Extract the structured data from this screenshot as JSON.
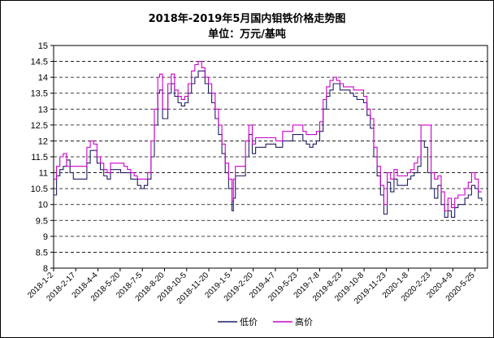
{
  "chart_data": {
    "type": "line",
    "title": "2018年-2019年5月国内钼铁价格走势图",
    "subtitle": "单位：万元/基吨",
    "ylim": [
      8,
      15
    ],
    "y_ticks": [
      "8",
      "8.5",
      "9",
      "9.5",
      "10",
      "10.5",
      "11",
      "11.5",
      "12",
      "12.5",
      "13",
      "13.5",
      "14",
      "14.5",
      "15"
    ],
    "x_tick_labels": [
      "2018-1-2",
      "2018-2-17",
      "2018-4-4",
      "2018-5-20",
      "2018-7-5",
      "2018-8-20",
      "2018-10-5",
      "2018-11-20",
      "2019-1-5",
      "2019-2-20",
      "2019-4-7",
      "2019-5-23",
      "2019-7-8",
      "2019-8-23",
      "2019-10-8",
      "2019-11-23",
      "2020-1-8",
      "2020-2-23",
      "2020-4-9",
      "2020-5-25"
    ],
    "x_range": [
      "2018-01-02",
      "2020-06-20"
    ],
    "grid": "horizontal-dashed",
    "legend_position": "bottom-right",
    "series": [
      {
        "name": "低价",
        "color": "#1f1f66",
        "points": [
          [
            "2018-01-02",
            10.3
          ],
          [
            "2018-01-08",
            10.9
          ],
          [
            "2018-01-15",
            11.1
          ],
          [
            "2018-01-22",
            11.2
          ],
          [
            "2018-01-29",
            11.4
          ],
          [
            "2018-02-05",
            11.0
          ],
          [
            "2018-02-12",
            10.8
          ],
          [
            "2018-03-05",
            10.8
          ],
          [
            "2018-03-12",
            11.3
          ],
          [
            "2018-03-19",
            11.7
          ],
          [
            "2018-03-26",
            11.7
          ],
          [
            "2018-04-02",
            11.3
          ],
          [
            "2018-04-09",
            11.1
          ],
          [
            "2018-04-16",
            10.9
          ],
          [
            "2018-04-23",
            10.8
          ],
          [
            "2018-04-30",
            11.1
          ],
          [
            "2018-05-14",
            11.1
          ],
          [
            "2018-05-21",
            11.0
          ],
          [
            "2018-06-04",
            11.0
          ],
          [
            "2018-06-11",
            10.8
          ],
          [
            "2018-06-18",
            10.8
          ],
          [
            "2018-06-25",
            10.6
          ],
          [
            "2018-07-02",
            10.5
          ],
          [
            "2018-07-09",
            10.6
          ],
          [
            "2018-07-16",
            10.8
          ],
          [
            "2018-07-23",
            11.5
          ],
          [
            "2018-07-30",
            12.5
          ],
          [
            "2018-08-06",
            13.5
          ],
          [
            "2018-08-10",
            13.6
          ],
          [
            "2018-08-16",
            12.7
          ],
          [
            "2018-08-20",
            12.7
          ],
          [
            "2018-08-27",
            13.5
          ],
          [
            "2018-09-03",
            13.8
          ],
          [
            "2018-09-10",
            13.4
          ],
          [
            "2018-09-17",
            13.2
          ],
          [
            "2018-09-24",
            13.1
          ],
          [
            "2018-10-01",
            13.2
          ],
          [
            "2018-10-08",
            13.5
          ],
          [
            "2018-10-15",
            13.8
          ],
          [
            "2018-10-22",
            14.0
          ],
          [
            "2018-10-29",
            14.2
          ],
          [
            "2018-11-05",
            14.2
          ],
          [
            "2018-11-12",
            13.8
          ],
          [
            "2018-11-19",
            13.5
          ],
          [
            "2018-11-26",
            13.2
          ],
          [
            "2018-12-03",
            12.7
          ],
          [
            "2018-12-10",
            12.2
          ],
          [
            "2018-12-17",
            11.6
          ],
          [
            "2018-12-24",
            11.0
          ],
          [
            "2018-12-31",
            10.5
          ],
          [
            "2019-01-07",
            9.8
          ],
          [
            "2019-01-10",
            10.2
          ],
          [
            "2019-01-14",
            10.9
          ],
          [
            "2019-01-28",
            10.9
          ],
          [
            "2019-02-04",
            11.5
          ],
          [
            "2019-02-11",
            12.2
          ],
          [
            "2019-02-18",
            11.6
          ],
          [
            "2019-02-25",
            11.8
          ],
          [
            "2019-03-11",
            11.8
          ],
          [
            "2019-03-18",
            11.9
          ],
          [
            "2019-04-01",
            11.9
          ],
          [
            "2019-04-08",
            11.8
          ],
          [
            "2019-04-15",
            11.8
          ],
          [
            "2019-04-22",
            12.0
          ],
          [
            "2019-05-06",
            12.0
          ],
          [
            "2019-05-13",
            12.2
          ],
          [
            "2019-05-27",
            12.2
          ],
          [
            "2019-06-03",
            12.0
          ],
          [
            "2019-06-10",
            11.9
          ],
          [
            "2019-06-17",
            11.8
          ],
          [
            "2019-06-24",
            11.9
          ],
          [
            "2019-07-01",
            12.0
          ],
          [
            "2019-07-08",
            12.3
          ],
          [
            "2019-07-15",
            13.0
          ],
          [
            "2019-07-22",
            13.4
          ],
          [
            "2019-07-29",
            13.6
          ],
          [
            "2019-08-05",
            13.8
          ],
          [
            "2019-08-12",
            13.8
          ],
          [
            "2019-08-19",
            13.6
          ],
          [
            "2019-08-26",
            13.6
          ],
          [
            "2019-09-09",
            13.5
          ],
          [
            "2019-09-16",
            13.4
          ],
          [
            "2019-09-23",
            13.3
          ],
          [
            "2019-10-07",
            13.2
          ],
          [
            "2019-10-14",
            12.8
          ],
          [
            "2019-10-21",
            12.4
          ],
          [
            "2019-10-28",
            11.5
          ],
          [
            "2019-11-04",
            10.9
          ],
          [
            "2019-11-11",
            10.3
          ],
          [
            "2019-11-18",
            9.7
          ],
          [
            "2019-11-25",
            10.7
          ],
          [
            "2019-12-02",
            10.4
          ],
          [
            "2019-12-09",
            10.8
          ],
          [
            "2019-12-16",
            10.6
          ],
          [
            "2019-12-30",
            10.6
          ],
          [
            "2020-01-06",
            10.8
          ],
          [
            "2020-01-13",
            10.9
          ],
          [
            "2020-01-20",
            11.0
          ],
          [
            "2020-01-27",
            11.2
          ],
          [
            "2020-02-03",
            12.0
          ],
          [
            "2020-02-10",
            11.8
          ],
          [
            "2020-02-17",
            11.0
          ],
          [
            "2020-02-24",
            10.5
          ],
          [
            "2020-03-02",
            10.2
          ],
          [
            "2020-03-09",
            10.6
          ],
          [
            "2020-03-16",
            10.0
          ],
          [
            "2020-03-23",
            9.6
          ],
          [
            "2020-03-30",
            9.8
          ],
          [
            "2020-04-06",
            9.6
          ],
          [
            "2020-04-13",
            9.9
          ],
          [
            "2020-04-20",
            10.0
          ],
          [
            "2020-04-27",
            10.0
          ],
          [
            "2020-05-04",
            10.2
          ],
          [
            "2020-05-11",
            10.3
          ],
          [
            "2020-05-18",
            10.6
          ],
          [
            "2020-05-25",
            10.5
          ],
          [
            "2020-06-01",
            10.2
          ],
          [
            "2020-06-08",
            10.1
          ]
        ]
      },
      {
        "name": "高价",
        "color": "#cc00cc",
        "points": [
          [
            "2018-01-02",
            10.8
          ],
          [
            "2018-01-08",
            11.2
          ],
          [
            "2018-01-15",
            11.5
          ],
          [
            "2018-01-22",
            11.6
          ],
          [
            "2018-01-29",
            11.2
          ],
          [
            "2018-03-05",
            11.2
          ],
          [
            "2018-03-12",
            11.8
          ],
          [
            "2018-03-19",
            12.0
          ],
          [
            "2018-03-26",
            11.9
          ],
          [
            "2018-04-02",
            11.5
          ],
          [
            "2018-04-09",
            11.3
          ],
          [
            "2018-04-16",
            11.1
          ],
          [
            "2018-04-23",
            11.0
          ],
          [
            "2018-04-30",
            11.3
          ],
          [
            "2018-05-28",
            11.2
          ],
          [
            "2018-06-04",
            11.1
          ],
          [
            "2018-06-11",
            11.0
          ],
          [
            "2018-06-18",
            10.9
          ],
          [
            "2018-06-25",
            10.8
          ],
          [
            "2018-07-02",
            10.8
          ],
          [
            "2018-07-09",
            10.8
          ],
          [
            "2018-07-16",
            11.0
          ],
          [
            "2018-07-23",
            12.0
          ],
          [
            "2018-07-30",
            13.0
          ],
          [
            "2018-08-06",
            14.0
          ],
          [
            "2018-08-10",
            14.1
          ],
          [
            "2018-08-16",
            13.0
          ],
          [
            "2018-08-20",
            13.0
          ],
          [
            "2018-08-27",
            13.8
          ],
          [
            "2018-09-03",
            14.1
          ],
          [
            "2018-09-10",
            13.6
          ],
          [
            "2018-09-17",
            13.4
          ],
          [
            "2018-09-24",
            13.3
          ],
          [
            "2018-10-01",
            13.4
          ],
          [
            "2018-10-08",
            13.8
          ],
          [
            "2018-10-15",
            14.2
          ],
          [
            "2018-10-22",
            14.4
          ],
          [
            "2018-10-29",
            14.5
          ],
          [
            "2018-11-05",
            14.3
          ],
          [
            "2018-11-12",
            14.0
          ],
          [
            "2018-11-19",
            13.8
          ],
          [
            "2018-11-26",
            13.5
          ],
          [
            "2018-12-03",
            13.0
          ],
          [
            "2018-12-10",
            12.5
          ],
          [
            "2018-12-17",
            11.9
          ],
          [
            "2018-12-24",
            11.3
          ],
          [
            "2018-12-31",
            10.8
          ],
          [
            "2019-01-07",
            10.1
          ],
          [
            "2019-01-10",
            10.8
          ],
          [
            "2019-01-14",
            11.2
          ],
          [
            "2019-01-28",
            11.2
          ],
          [
            "2019-02-04",
            12.0
          ],
          [
            "2019-02-11",
            12.5
          ],
          [
            "2019-02-18",
            11.9
          ],
          [
            "2019-02-25",
            12.1
          ],
          [
            "2019-03-11",
            12.1
          ],
          [
            "2019-03-18",
            12.1
          ],
          [
            "2019-04-01",
            12.1
          ],
          [
            "2019-04-08",
            12.0
          ],
          [
            "2019-04-15",
            12.0
          ],
          [
            "2019-04-22",
            12.3
          ],
          [
            "2019-05-06",
            12.3
          ],
          [
            "2019-05-13",
            12.5
          ],
          [
            "2019-05-27",
            12.5
          ],
          [
            "2019-06-03",
            12.3
          ],
          [
            "2019-06-10",
            12.2
          ],
          [
            "2019-06-17",
            12.2
          ],
          [
            "2019-06-24",
            12.2
          ],
          [
            "2019-07-01",
            12.3
          ],
          [
            "2019-07-08",
            12.6
          ],
          [
            "2019-07-15",
            13.3
          ],
          [
            "2019-07-22",
            13.7
          ],
          [
            "2019-07-29",
            13.9
          ],
          [
            "2019-08-05",
            14.0
          ],
          [
            "2019-08-12",
            13.9
          ],
          [
            "2019-08-19",
            13.8
          ],
          [
            "2019-08-26",
            13.7
          ],
          [
            "2019-09-09",
            13.7
          ],
          [
            "2019-09-16",
            13.6
          ],
          [
            "2019-09-23",
            13.6
          ],
          [
            "2019-10-07",
            13.4
          ],
          [
            "2019-10-14",
            13.0
          ],
          [
            "2019-10-21",
            12.7
          ],
          [
            "2019-10-28",
            11.8
          ],
          [
            "2019-11-04",
            11.2
          ],
          [
            "2019-11-11",
            10.6
          ],
          [
            "2019-11-18",
            10.0
          ],
          [
            "2019-11-25",
            11.0
          ],
          [
            "2019-12-02",
            10.8
          ],
          [
            "2019-12-09",
            11.1
          ],
          [
            "2019-12-16",
            10.9
          ],
          [
            "2019-12-30",
            10.9
          ],
          [
            "2020-01-06",
            11.0
          ],
          [
            "2020-01-13",
            11.1
          ],
          [
            "2020-01-20",
            11.3
          ],
          [
            "2020-01-27",
            11.5
          ],
          [
            "2020-02-03",
            12.5
          ],
          [
            "2020-02-17",
            12.5
          ],
          [
            "2020-02-24",
            11.0
          ],
          [
            "2020-03-02",
            10.8
          ],
          [
            "2020-03-09",
            10.9
          ],
          [
            "2020-03-16",
            10.4
          ],
          [
            "2020-03-23",
            9.8
          ],
          [
            "2020-03-30",
            10.2
          ],
          [
            "2020-04-06",
            9.9
          ],
          [
            "2020-04-13",
            10.2
          ],
          [
            "2020-04-20",
            10.3
          ],
          [
            "2020-04-27",
            10.3
          ],
          [
            "2020-05-04",
            10.5
          ],
          [
            "2020-05-11",
            10.7
          ],
          [
            "2020-05-18",
            11.0
          ],
          [
            "2020-05-25",
            10.8
          ],
          [
            "2020-06-01",
            10.4
          ],
          [
            "2020-06-08",
            10.4
          ]
        ]
      }
    ]
  }
}
